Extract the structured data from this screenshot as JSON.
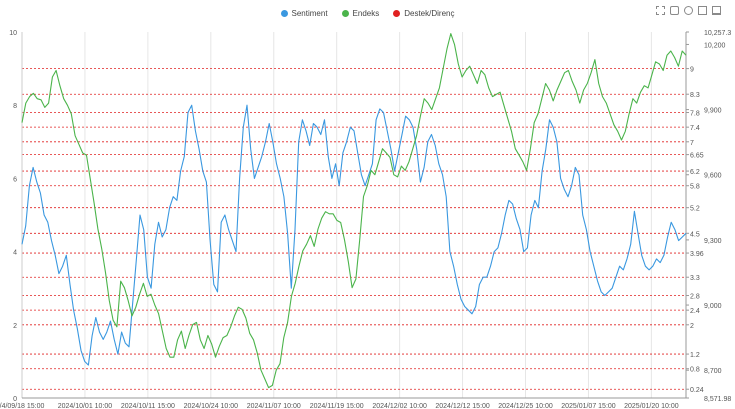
{
  "legend": {
    "items": [
      {
        "name": "Sentiment",
        "color": "#3a98e0"
      },
      {
        "name": "Endeks",
        "color": "#4bb44b"
      },
      {
        "name": "Destek/Direnç",
        "color": "#e02020"
      }
    ]
  },
  "toolbox": {
    "icons": [
      "zoom-icon",
      "zoom-reset-icon",
      "restore-icon",
      "data-view-icon",
      "save-image-icon"
    ]
  },
  "chart_data": {
    "type": "line",
    "x_tick_labels": [
      "/4/09/18 15:00",
      "2024/10/01 10:00",
      "2024/10/11 15:00",
      "2024/10/24 10:00",
      "2024/11/07 10:00",
      "2024/11/19 15:00",
      "2024/12/02 10:00",
      "2024/12/12 15:00",
      "2024/12/25 10:00",
      "2025/01/07 15:00",
      "2025/01/20 10:00"
    ],
    "left_axis": {
      "name": "",
      "min": 0,
      "max": 10,
      "ticks": [
        "0",
        "2",
        "4",
        "6",
        "8",
        "10"
      ]
    },
    "right_axis": {
      "name": "",
      "min": 8571.98,
      "max": 10257.3,
      "ticks": [
        {
          "value": 10257.3,
          "label": "10,257.3"
        },
        {
          "value": 10200,
          "label": "10,200"
        },
        {
          "value": 9900,
          "label": "9,900"
        },
        {
          "value": 9600,
          "label": "9,600"
        },
        {
          "value": 9300,
          "label": "9,300"
        },
        {
          "value": 9000,
          "label": "9,000"
        },
        {
          "value": 8700,
          "label": "8,700"
        },
        {
          "value": 8571.98,
          "label": "8,571.98"
        }
      ]
    },
    "levels": [
      {
        "value": 9,
        "label": "9"
      },
      {
        "value": 8.3,
        "label": "8.3"
      },
      {
        "value": 7.8,
        "label": "7.8"
      },
      {
        "value": 7.4,
        "label": "7.4"
      },
      {
        "value": 7,
        "label": "7"
      },
      {
        "value": 6.65,
        "label": "6.65"
      },
      {
        "value": 6.2,
        "label": "6.2"
      },
      {
        "value": 5.8,
        "label": "5.8"
      },
      {
        "value": 5.2,
        "label": "5.2"
      },
      {
        "value": 4.5,
        "label": "4.5"
      },
      {
        "value": 3.96,
        "label": "3.96"
      },
      {
        "value": 3.3,
        "label": "3.3"
      },
      {
        "value": 2.8,
        "label": "2.8"
      },
      {
        "value": 2.4,
        "label": "2.4"
      },
      {
        "value": 2,
        "label": "2"
      },
      {
        "value": 1.2,
        "label": "1.2"
      },
      {
        "value": 0.8,
        "label": "0.8"
      },
      {
        "value": 0.24,
        "label": "0.24"
      }
    ],
    "series": [
      {
        "name": "Sentiment",
        "axis": "left",
        "color": "#3a98e0",
        "values": [
          4.2,
          4.7,
          5.8,
          6.3,
          5.9,
          5.6,
          5.0,
          4.8,
          4.3,
          3.9,
          3.4,
          3.6,
          3.9,
          3.1,
          2.4,
          1.9,
          1.3,
          1.0,
          0.9,
          1.7,
          2.2,
          1.8,
          1.6,
          1.8,
          2.1,
          1.6,
          1.2,
          1.8,
          1.5,
          1.4,
          2.6,
          3.8,
          5.0,
          4.6,
          3.3,
          3.0,
          4.2,
          4.8,
          4.4,
          4.6,
          5.2,
          5.5,
          5.4,
          6.2,
          6.6,
          7.8,
          8.0,
          7.3,
          6.8,
          6.2,
          5.9,
          4.3,
          3.1,
          2.9,
          4.8,
          5.0,
          4.6,
          4.3,
          4.0,
          6.0,
          7.4,
          8.0,
          6.8,
          6.0,
          6.3,
          6.6,
          7.0,
          7.5,
          7.0,
          6.4,
          6.0,
          5.5,
          4.5,
          3.0,
          4.6,
          7.0,
          7.6,
          7.3,
          6.9,
          7.5,
          7.4,
          7.2,
          7.6,
          6.6,
          6.0,
          6.4,
          5.8,
          6.7,
          7.0,
          7.4,
          7.3,
          6.7,
          6.1,
          5.8,
          6.1,
          6.4,
          7.6,
          7.9,
          7.8,
          7.3,
          6.8,
          6.2,
          6.7,
          7.2,
          7.7,
          7.6,
          7.4,
          6.8,
          5.9,
          6.3,
          7.0,
          7.2,
          6.9,
          6.4,
          6.1,
          5.5,
          4.0,
          3.6,
          3.1,
          2.7,
          2.5,
          2.4,
          2.3,
          2.5,
          3.1,
          3.3,
          3.3,
          3.6,
          4.0,
          4.1,
          4.5,
          5.0,
          5.4,
          5.3,
          4.9,
          4.6,
          4.0,
          4.1,
          5.0,
          5.4,
          5.2,
          6.2,
          6.8,
          7.6,
          7.4,
          7.0,
          6.0,
          5.7,
          5.5,
          5.8,
          6.3,
          6.1,
          5.0,
          4.6,
          4.0,
          3.6,
          3.2,
          2.9,
          2.8,
          2.9,
          3.0,
          3.3,
          3.6,
          3.5,
          3.8,
          4.2,
          5.1,
          4.5,
          3.9,
          3.6,
          3.5,
          3.6,
          3.8,
          3.7,
          3.9,
          4.4,
          4.8,
          4.6,
          4.3,
          4.4,
          4.5
        ]
      },
      {
        "name": "Endeks",
        "axis": "right",
        "color": "#4bb44b",
        "values": [
          9840,
          9930,
          9960,
          9975,
          9950,
          9945,
          9910,
          9930,
          10050,
          10080,
          10010,
          9950,
          9920,
          9880,
          9780,
          9740,
          9700,
          9690,
          9580,
          9470,
          9350,
          9260,
          9150,
          9020,
          8930,
          8900,
          9110,
          9080,
          9020,
          8950,
          8990,
          9050,
          9100,
          9040,
          9050,
          9000,
          8960,
          8880,
          8800,
          8760,
          8760,
          8840,
          8880,
          8800,
          8860,
          8910,
          8920,
          8840,
          8800,
          8860,
          8820,
          8760,
          8810,
          8850,
          8860,
          8900,
          8950,
          8990,
          8980,
          8940,
          8870,
          8840,
          8780,
          8700,
          8660,
          8620,
          8630,
          8700,
          8730,
          8850,
          8920,
          9040,
          9100,
          9180,
          9250,
          9280,
          9320,
          9270,
          9350,
          9400,
          9430,
          9420,
          9420,
          9390,
          9380,
          9300,
          9200,
          9080,
          9120,
          9300,
          9500,
          9550,
          9620,
          9600,
          9660,
          9720,
          9700,
          9680,
          9600,
          9590,
          9640,
          9620,
          9660,
          9720,
          9780,
          9870,
          9950,
          9930,
          9900,
          9950,
          10000,
          10090,
          10180,
          10250,
          10200,
          10110,
          10050,
          10080,
          10100,
          10060,
          10020,
          10080,
          10060,
          10000,
          9960,
          9970,
          9980,
          9920,
          9860,
          9800,
          9720,
          9690,
          9660,
          9620,
          9720,
          9840,
          9880,
          9950,
          10020,
          9990,
          9940,
          9990,
          10030,
          10070,
          10080,
          10030,
          9990,
          9930,
          9990,
          10020,
          10070,
          10130,
          10020,
          9960,
          9930,
          9880,
          9830,
          9800,
          9760,
          9800,
          9880,
          9950,
          9930,
          9980,
          10010,
          10000,
          10060,
          10120,
          10110,
          10080,
          10150,
          10170,
          10140,
          10100,
          10170,
          10150
        ]
      },
      {
        "name": "Destek/Direnç",
        "axis": "left",
        "color": "#e02020",
        "values": []
      }
    ]
  }
}
